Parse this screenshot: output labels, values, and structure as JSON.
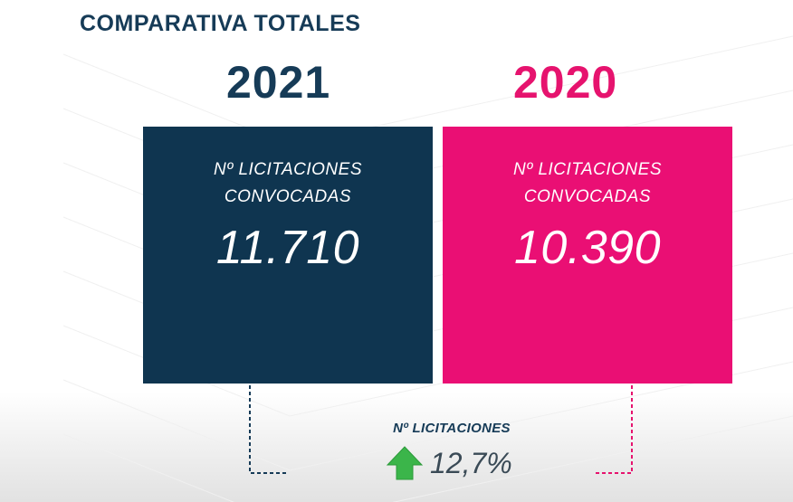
{
  "title": "COMPARATIVA TOTALES",
  "cards": [
    {
      "year": "2021",
      "label_line1": "Nº LICITACIONES",
      "label_line2": "CONVOCADAS",
      "value": "11.710",
      "color": "#0f3550"
    },
    {
      "year": "2020",
      "label_line1": "Nº LICITACIONES",
      "label_line2": "CONVOCADAS",
      "value": "10.390",
      "color": "#ea0f74"
    }
  ],
  "summary": {
    "label": "Nº LICITACIONES",
    "change": "12,7%",
    "direction_icon": "arrow-up-icon",
    "accent": "#3bb54a"
  }
}
